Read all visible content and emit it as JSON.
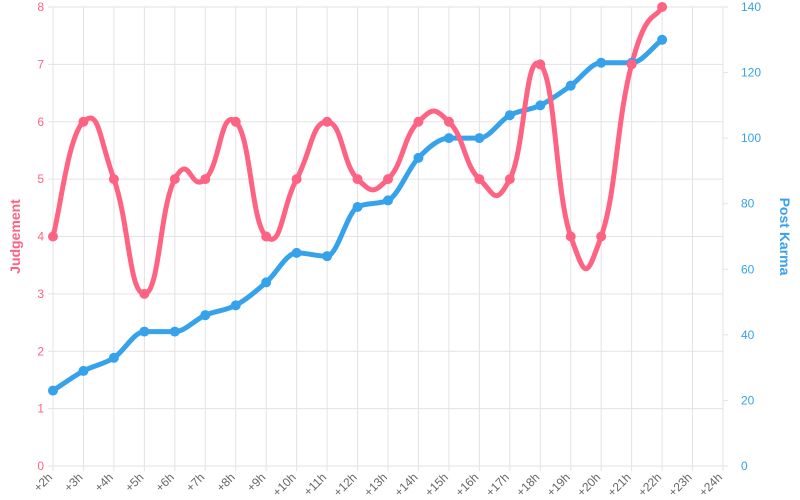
{
  "chart_data": {
    "type": "line",
    "x": [
      "+2h",
      "+3h",
      "+4h",
      "+5h",
      "+6h",
      "+7h",
      "+8h",
      "+9h",
      "+10h",
      "+11h",
      "+12h",
      "+13h",
      "+14h",
      "+15h",
      "+16h",
      "+17h",
      "+18h",
      "+19h",
      "+20h",
      "+21h",
      "+22h",
      "+23h",
      "+24h"
    ],
    "series": [
      {
        "name": "Judgement",
        "axis": "left",
        "color": "#ff6384",
        "values": [
          4,
          6,
          5,
          3,
          5,
          5,
          6,
          4,
          5,
          6,
          5,
          5,
          6,
          6,
          5,
          5,
          7,
          4,
          4,
          7,
          8,
          null,
          null
        ]
      },
      {
        "name": "Post Karma",
        "axis": "right",
        "color": "#36a2eb",
        "values": [
          23,
          29,
          33,
          41,
          41,
          46,
          49,
          56,
          65,
          64,
          79,
          81,
          94,
          100,
          100,
          107,
          110,
          116,
          123,
          123,
          130,
          null,
          null
        ]
      }
    ],
    "ylabel_left": "Judgement",
    "ylabel_right": "Post Karma",
    "ylim_left": [
      0,
      8
    ],
    "ylim_right": [
      0,
      140
    ],
    "yticks_left": [
      "0",
      "1",
      "2",
      "3",
      "4",
      "5",
      "6",
      "7",
      "8"
    ],
    "yticks_right": [
      "0",
      "20",
      "40",
      "60",
      "80",
      "100",
      "120",
      "140"
    ],
    "grid": true,
    "legend": "none"
  }
}
